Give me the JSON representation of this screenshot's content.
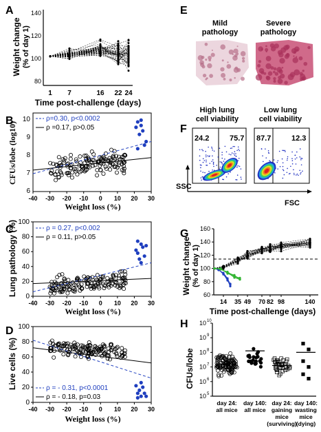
{
  "panels": {
    "A": {
      "letter": "A",
      "ylabel": "Weight change",
      "ylabel2": "(% of day 1)",
      "xlabel": "Time post-challenge (days)",
      "yticks": [
        "80",
        "100",
        "120",
        "140"
      ],
      "xticks": [
        "1",
        "7",
        "16",
        "22",
        "24"
      ]
    },
    "B": {
      "letter": "B",
      "ylabel": "CFUs/lobe (log10)",
      "xlabel": "Weight loss (%)",
      "yticks": [
        "6",
        "7",
        "8",
        "9",
        "10"
      ],
      "xticks": [
        "-40",
        "-30",
        "-20",
        "-10",
        "0",
        "10",
        "20",
        "30"
      ],
      "legend1": "ρ=0.30, p<0.0002",
      "legend2": "ρ =0.17, p>0.05"
    },
    "C": {
      "letter": "C",
      "ylabel": "Lung pathology (%)",
      "xlabel": "Weight loss (%)",
      "yticks": [
        "0",
        "20",
        "40",
        "60",
        "80",
        "100"
      ],
      "xticks": [
        "-40",
        "-30",
        "-20",
        "-10",
        "0",
        "10",
        "20",
        "30"
      ],
      "legend1": "ρ = 0.27, p<0.002",
      "legend2": "ρ = 0.11, p>0.05"
    },
    "D": {
      "letter": "D",
      "ylabel": "Live cells (%)",
      "xlabel": "Weight loss (%)",
      "yticks": [
        "0",
        "20",
        "40",
        "60",
        "80",
        "100"
      ],
      "xticks": [
        "-40",
        "-30",
        "-20",
        "-10",
        "0",
        "10",
        "20",
        "30"
      ],
      "legend1": "ρ = - 0.31, p<0.0001",
      "legend2": "ρ = - 0.18, p=0.03"
    },
    "E": {
      "letter": "E",
      "left_title1": "Mild",
      "left_title2": "pathology",
      "right_title1": "Severe",
      "right_title2": "pathology"
    },
    "F": {
      "letter": "F",
      "left_title1": "High lung",
      "left_title2": "cell viability",
      "right_title1": "Low lung",
      "right_title2": "cell viability",
      "left_q1": "24.2",
      "left_q2": "75.7",
      "right_q1": "87.7",
      "right_q2": "12.3",
      "yaxis": "SSC",
      "xaxis": "FSC"
    },
    "G": {
      "letter": "G",
      "ylabel": "Weight change",
      "ylabel2": "(% of day 1)",
      "xlabel": "Time post-challenge (days)",
      "yticks": [
        "60",
        "80",
        "100",
        "120",
        "140",
        "160"
      ],
      "xticks": [
        "14",
        "35",
        "49",
        "70",
        "82",
        "98",
        "140"
      ]
    },
    "H": {
      "letter": "H",
      "ylabel": "CFUs/lobe",
      "yticks": [
        "10",
        "10",
        "10",
        "10",
        "10",
        "10"
      ],
      "yexp": [
        "5",
        "6",
        "7",
        "8",
        "9",
        "10"
      ],
      "groups": [
        {
          "l1": "day 24:",
          "l2": "all mice"
        },
        {
          "l1": "day 140:",
          "l2": "all mice"
        },
        {
          "l1": "day 24:",
          "l2": "gaining",
          "l3": "mice",
          "l4": "(surviving)"
        },
        {
          "l1": "day 140:",
          "l2": "wasting",
          "l3": "mice",
          "l4": "(dying)"
        }
      ]
    }
  },
  "colors": {
    "blue": "#1f3fbf",
    "green": "#33b533",
    "black": "#000000"
  }
}
